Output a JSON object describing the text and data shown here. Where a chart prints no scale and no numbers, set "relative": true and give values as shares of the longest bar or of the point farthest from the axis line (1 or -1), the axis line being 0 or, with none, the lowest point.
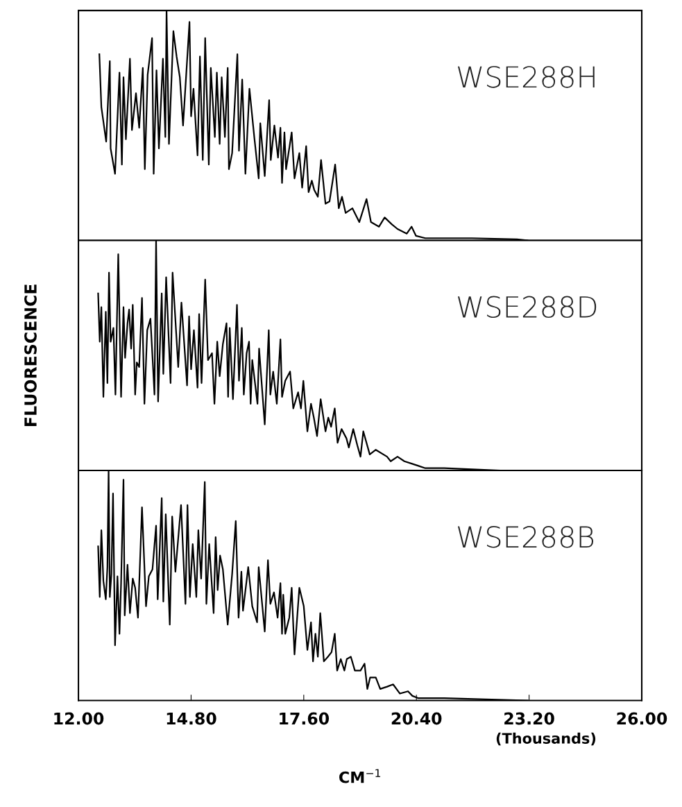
{
  "chart_data": [
    {
      "type": "line",
      "relative": true,
      "color": "#000000",
      "xlim": [
        12,
        26
      ],
      "tick_labels": false,
      "annotations": [
        "WSE288H"
      ],
      "x": [
        12.52,
        12.57,
        12.69,
        12.78,
        12.8,
        12.91,
        13.02,
        13.08,
        13.12,
        13.18,
        13.28,
        13.33,
        13.43,
        13.51,
        13.6,
        13.65,
        13.72,
        13.83,
        13.87,
        13.94,
        14.0,
        14.1,
        14.16,
        14.19,
        14.25,
        14.36,
        14.44,
        14.52,
        14.6,
        14.76,
        14.8,
        14.86,
        14.96,
        15.02,
        15.09,
        15.15,
        15.24,
        15.29,
        15.39,
        15.44,
        15.51,
        15.56,
        15.64,
        15.71,
        15.74,
        15.82,
        15.95,
        15.99,
        16.07,
        16.15,
        16.25,
        16.37,
        16.48,
        16.52,
        16.63,
        16.74,
        16.78,
        16.87,
        16.96,
        17.02,
        17.06,
        17.12,
        17.16,
        17.3,
        17.37,
        17.49,
        17.56,
        17.66,
        17.72,
        17.8,
        17.86,
        17.95,
        18.03,
        18.14,
        18.24,
        18.38,
        18.47,
        18.55,
        18.64,
        18.81,
        18.98,
        19.16,
        19.27,
        19.47,
        19.61,
        19.79,
        19.93,
        20.16,
        20.28,
        20.39,
        20.62,
        21.09,
        21.78,
        22.9,
        23.16
      ],
      "values": [
        0.81,
        0.58,
        0.43,
        0.78,
        0.4,
        0.29,
        0.73,
        0.33,
        0.71,
        0.44,
        0.79,
        0.48,
        0.64,
        0.49,
        0.75,
        0.31,
        0.72,
        0.88,
        0.29,
        0.74,
        0.4,
        0.79,
        0.45,
        1.0,
        0.42,
        0.91,
        0.8,
        0.71,
        0.5,
        0.95,
        0.54,
        0.66,
        0.37,
        0.8,
        0.35,
        0.88,
        0.33,
        0.75,
        0.45,
        0.73,
        0.42,
        0.71,
        0.45,
        0.75,
        0.31,
        0.38,
        0.81,
        0.39,
        0.7,
        0.29,
        0.66,
        0.45,
        0.27,
        0.51,
        0.28,
        0.61,
        0.35,
        0.5,
        0.36,
        0.49,
        0.25,
        0.47,
        0.31,
        0.47,
        0.27,
        0.38,
        0.23,
        0.41,
        0.21,
        0.26,
        0.22,
        0.19,
        0.35,
        0.16,
        0.17,
        0.33,
        0.14,
        0.19,
        0.12,
        0.14,
        0.08,
        0.18,
        0.08,
        0.06,
        0.1,
        0.07,
        0.05,
        0.03,
        0.06,
        0.02,
        0.01,
        0.01,
        0.01,
        0.005,
        0
      ]
    },
    {
      "type": "line",
      "relative": true,
      "color": "#000000",
      "xlim": [
        12,
        26
      ],
      "tick_labels": false,
      "ylabel": "FLUORESCENCE",
      "annotations": [
        "WSE288D"
      ],
      "x": [
        12.49,
        12.53,
        12.57,
        12.62,
        12.68,
        12.72,
        12.76,
        12.8,
        12.87,
        12.92,
        12.99,
        13.06,
        13.12,
        13.16,
        13.22,
        13.26,
        13.31,
        13.35,
        13.41,
        13.45,
        13.51,
        13.58,
        13.64,
        13.71,
        13.79,
        13.89,
        13.93,
        13.98,
        14.07,
        14.11,
        14.18,
        14.29,
        14.34,
        14.48,
        14.56,
        14.7,
        14.75,
        14.8,
        14.87,
        14.96,
        15.0,
        15.06,
        15.15,
        15.22,
        15.32,
        15.38,
        15.45,
        15.51,
        15.59,
        15.68,
        15.72,
        15.76,
        15.84,
        15.94,
        15.99,
        16.06,
        16.11,
        16.18,
        16.24,
        16.28,
        16.32,
        16.45,
        16.49,
        16.63,
        16.73,
        16.77,
        16.84,
        16.93,
        17.02,
        17.06,
        17.14,
        17.26,
        17.34,
        17.46,
        17.53,
        17.59,
        17.69,
        17.78,
        17.85,
        17.93,
        18.02,
        18.14,
        18.21,
        18.28,
        18.37,
        18.44,
        18.54,
        18.66,
        18.72,
        18.83,
        18.93,
        19.01,
        19.08,
        19.24,
        19.39,
        19.67,
        19.76,
        19.93,
        20.1,
        20.28,
        20.45,
        20.62,
        21.09,
        21.78,
        22.47
      ],
      "values": [
        0.77,
        0.56,
        0.71,
        0.32,
        0.69,
        0.38,
        0.86,
        0.56,
        0.62,
        0.33,
        0.94,
        0.32,
        0.71,
        0.49,
        0.64,
        0.7,
        0.53,
        0.72,
        0.33,
        0.47,
        0.45,
        0.75,
        0.29,
        0.61,
        0.66,
        0.33,
        1.0,
        0.3,
        0.77,
        0.42,
        0.84,
        0.38,
        0.86,
        0.45,
        0.73,
        0.37,
        0.67,
        0.44,
        0.61,
        0.36,
        0.68,
        0.38,
        0.83,
        0.48,
        0.51,
        0.29,
        0.56,
        0.41,
        0.55,
        0.64,
        0.32,
        0.62,
        0.31,
        0.72,
        0.39,
        0.62,
        0.33,
        0.51,
        0.56,
        0.29,
        0.48,
        0.29,
        0.53,
        0.2,
        0.61,
        0.33,
        0.43,
        0.29,
        0.57,
        0.32,
        0.39,
        0.43,
        0.27,
        0.34,
        0.27,
        0.39,
        0.17,
        0.29,
        0.23,
        0.15,
        0.31,
        0.17,
        0.23,
        0.19,
        0.27,
        0.12,
        0.18,
        0.14,
        0.1,
        0.18,
        0.11,
        0.06,
        0.17,
        0.07,
        0.09,
        0.06,
        0.04,
        0.06,
        0.04,
        0.03,
        0.02,
        0.01,
        0.01,
        0.005,
        0
      ]
    },
    {
      "type": "line",
      "relative": true,
      "color": "#000000",
      "xlim": [
        12,
        26
      ],
      "xticks": [
        {
          "value": 12,
          "label": "12.00"
        },
        {
          "value": 14.8,
          "label": "14.80"
        },
        {
          "value": 17.6,
          "label": "17.60"
        },
        {
          "value": 20.4,
          "label": "20.40"
        },
        {
          "value": 23.2,
          "label": "23.20"
        },
        {
          "value": 26,
          "label": "26.00"
        }
      ],
      "tick_labels": "x",
      "xlabel": "CM$^{−1}$",
      "annotations": [
        "WSE288B",
        "(Thousands)"
      ],
      "x": [
        12.49,
        12.53,
        12.57,
        12.62,
        12.68,
        12.72,
        12.75,
        12.78,
        12.82,
        12.86,
        12.91,
        12.97,
        13.02,
        13.06,
        13.12,
        13.15,
        13.22,
        13.28,
        13.35,
        13.41,
        13.48,
        13.58,
        13.68,
        13.75,
        13.84,
        13.93,
        13.97,
        14.07,
        14.11,
        14.17,
        14.27,
        14.33,
        14.41,
        14.55,
        14.66,
        14.71,
        14.77,
        14.84,
        14.93,
        14.98,
        15.05,
        15.14,
        15.18,
        15.25,
        15.36,
        15.41,
        15.46,
        15.52,
        15.59,
        15.71,
        15.82,
        15.91,
        15.98,
        16.05,
        16.09,
        16.22,
        16.32,
        16.44,
        16.48,
        16.63,
        16.71,
        16.77,
        16.86,
        16.95,
        17.02,
        17.06,
        17.09,
        17.14,
        17.24,
        17.3,
        17.37,
        17.49,
        17.6,
        17.69,
        17.78,
        17.83,
        17.89,
        17.95,
        18.01,
        18.1,
        18.2,
        18.29,
        18.37,
        18.43,
        18.52,
        18.61,
        18.67,
        18.77,
        18.87,
        19.01,
        19.11,
        19.18,
        19.25,
        19.39,
        19.5,
        19.67,
        19.82,
        19.99,
        20.19,
        20.3,
        20.45,
        20.62,
        21.09,
        22.12,
        23.16
      ],
      "values": [
        0.67,
        0.45,
        0.74,
        0.52,
        0.44,
        0.58,
        1.0,
        0.45,
        0.55,
        0.9,
        0.24,
        0.54,
        0.29,
        0.51,
        0.96,
        0.37,
        0.59,
        0.38,
        0.53,
        0.49,
        0.36,
        0.84,
        0.41,
        0.54,
        0.57,
        0.76,
        0.44,
        0.88,
        0.43,
        0.81,
        0.33,
        0.8,
        0.56,
        0.85,
        0.42,
        0.85,
        0.45,
        0.68,
        0.45,
        0.74,
        0.53,
        0.95,
        0.42,
        0.68,
        0.38,
        0.71,
        0.48,
        0.63,
        0.57,
        0.33,
        0.55,
        0.78,
        0.36,
        0.56,
        0.39,
        0.58,
        0.41,
        0.34,
        0.58,
        0.3,
        0.61,
        0.42,
        0.47,
        0.36,
        0.51,
        0.29,
        0.46,
        0.29,
        0.36,
        0.49,
        0.2,
        0.49,
        0.41,
        0.22,
        0.34,
        0.17,
        0.29,
        0.19,
        0.38,
        0.17,
        0.19,
        0.21,
        0.29,
        0.13,
        0.18,
        0.13,
        0.18,
        0.19,
        0.13,
        0.13,
        0.16,
        0.05,
        0.1,
        0.1,
        0.05,
        0.06,
        0.07,
        0.03,
        0.04,
        0.02,
        0.01,
        0.01,
        0.01,
        0.005,
        0
      ]
    }
  ]
}
